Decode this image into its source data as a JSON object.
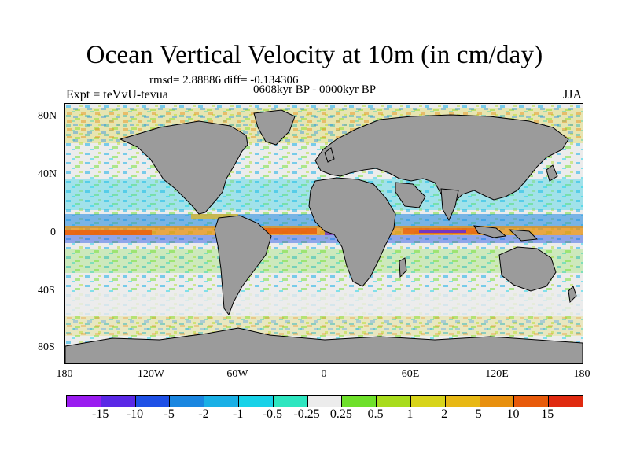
{
  "title": "Ocean Vertical Velocity at 10m (in cm/day)",
  "stats": "rmsd= 2.88886 diff= -0.134306",
  "period": "0608kyr BP - 0000kyr BP",
  "experiment": "Expt = teVvU-tevua",
  "season": "JJA",
  "map": {
    "land_color": "#9b9b9b",
    "y_ticks": [
      "80N",
      "40N",
      "0",
      "40S",
      "80S"
    ],
    "x_ticks": [
      "180",
      "120W",
      "60W",
      "0",
      "60E",
      "120E",
      "180"
    ]
  },
  "colorbar": {
    "colors": [
      "#9a1cf0",
      "#5a28e6",
      "#1e50e6",
      "#1a86e0",
      "#1ab0e6",
      "#18d2e8",
      "#2ee6c0",
      "#ececec",
      "#6ee02a",
      "#a8dc1c",
      "#d8d41a",
      "#e8b814",
      "#e8900e",
      "#e85a0a",
      "#e02a10"
    ],
    "labels": [
      "-15",
      "-10",
      "-5",
      "-2",
      "-1",
      "-0.5",
      "-0.25",
      "0.25",
      "0.5",
      "1",
      "2",
      "5",
      "10",
      "15"
    ]
  }
}
